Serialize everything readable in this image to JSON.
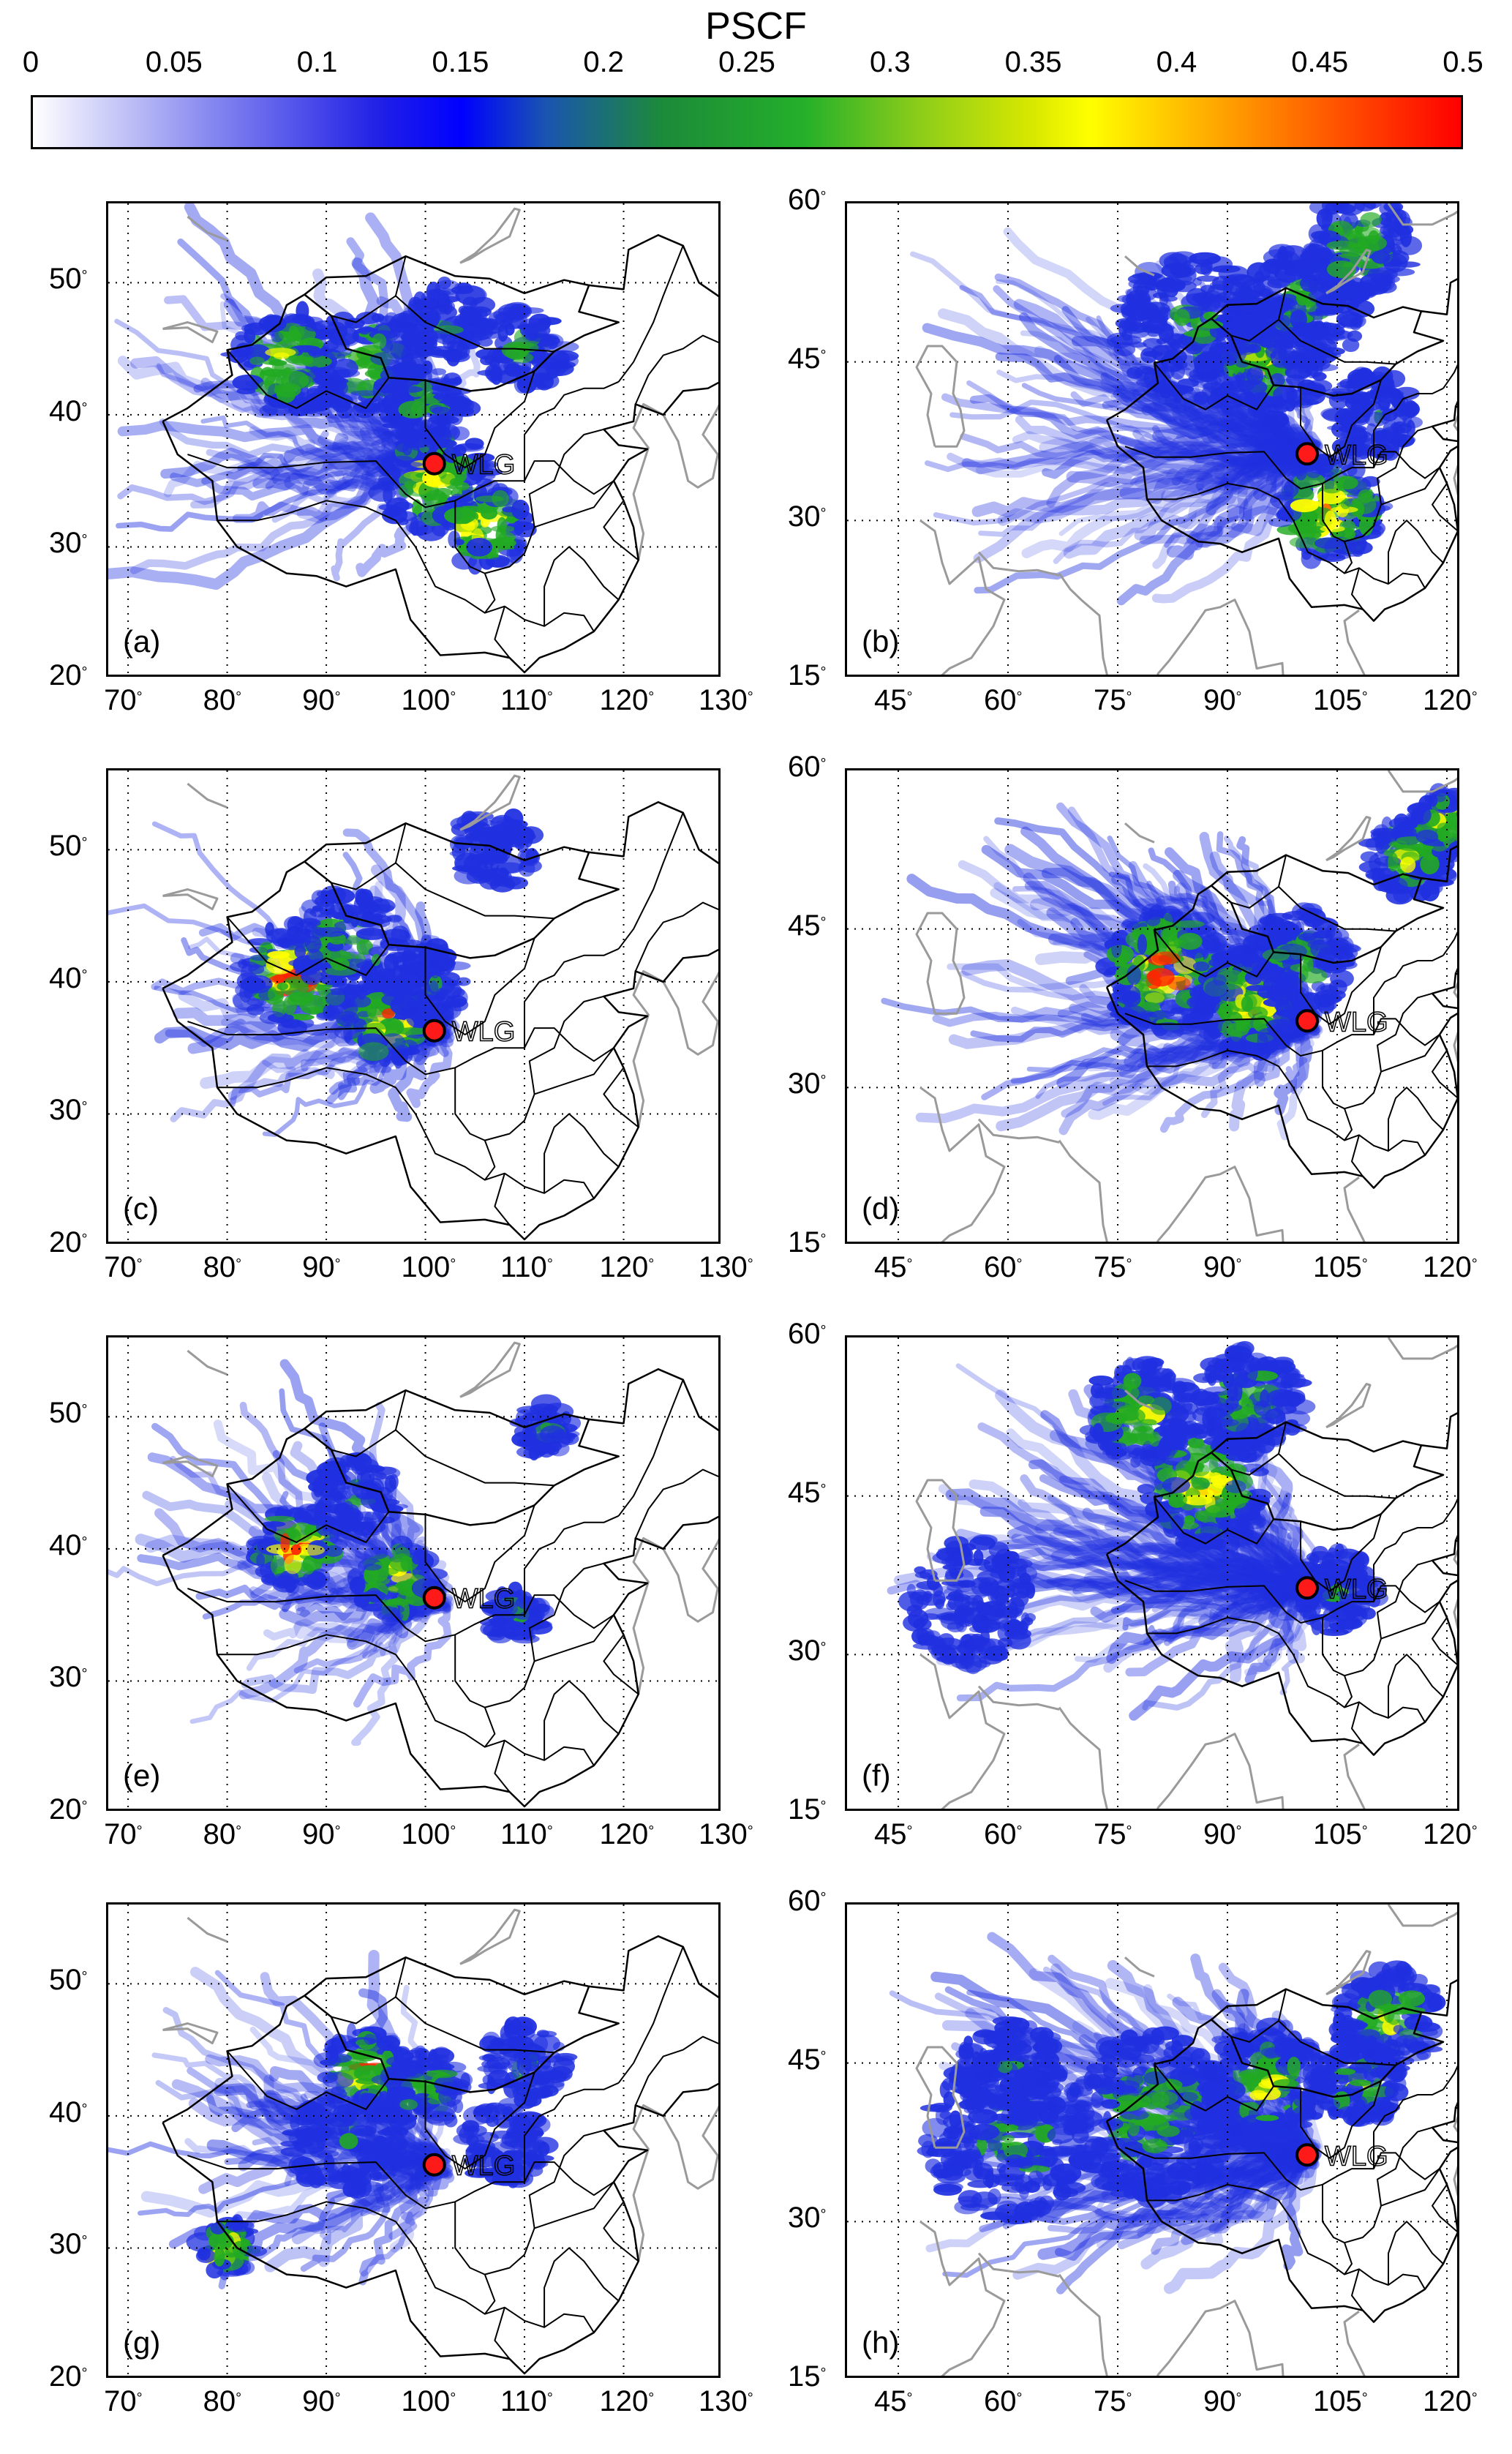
{
  "colorbar": {
    "title": "PSCF",
    "ticks": [
      "0",
      "0.05",
      "0.1",
      "0.15",
      "0.2",
      "0.25",
      "0.3",
      "0.35",
      "0.4",
      "0.45",
      "0.5"
    ],
    "range": [
      0,
      0.5
    ]
  },
  "map_type_left": {
    "lon_ticks": [
      "70",
      "80",
      "90",
      "100",
      "110",
      "120",
      "130"
    ],
    "lat_ticks": [
      "20",
      "30",
      "40",
      "50"
    ],
    "lon_range": [
      68,
      130
    ],
    "lat_range": [
      20,
      56
    ]
  },
  "map_type_right": {
    "lon_ticks": [
      "45",
      "60",
      "75",
      "90",
      "105",
      "120"
    ],
    "lat_ticks": [
      "15",
      "30",
      "45",
      "60"
    ],
    "lon_range": [
      38,
      122
    ],
    "lat_range": [
      15,
      60
    ]
  },
  "degree_symbol": "°",
  "site_label": "WLG",
  "site": {
    "lon": 100.9,
    "lat": 36.3
  },
  "panels": [
    {
      "label": "(a)",
      "type": "left"
    },
    {
      "label": "(b)",
      "type": "right"
    },
    {
      "label": "(c)",
      "type": "left"
    },
    {
      "label": "(d)",
      "type": "right"
    },
    {
      "label": "(e)",
      "type": "left"
    },
    {
      "label": "(f)",
      "type": "right"
    },
    {
      "label": "(g)",
      "type": "left"
    },
    {
      "label": "(h)",
      "type": "right"
    }
  ],
  "colors": {
    "border": "#000000",
    "coast": "#9a9a9a",
    "site_fill": "#ff1a1a",
    "low": "#2030e0",
    "mid": "#22aa22",
    "high1": "#ffff00",
    "high2": "#ff2200"
  }
}
